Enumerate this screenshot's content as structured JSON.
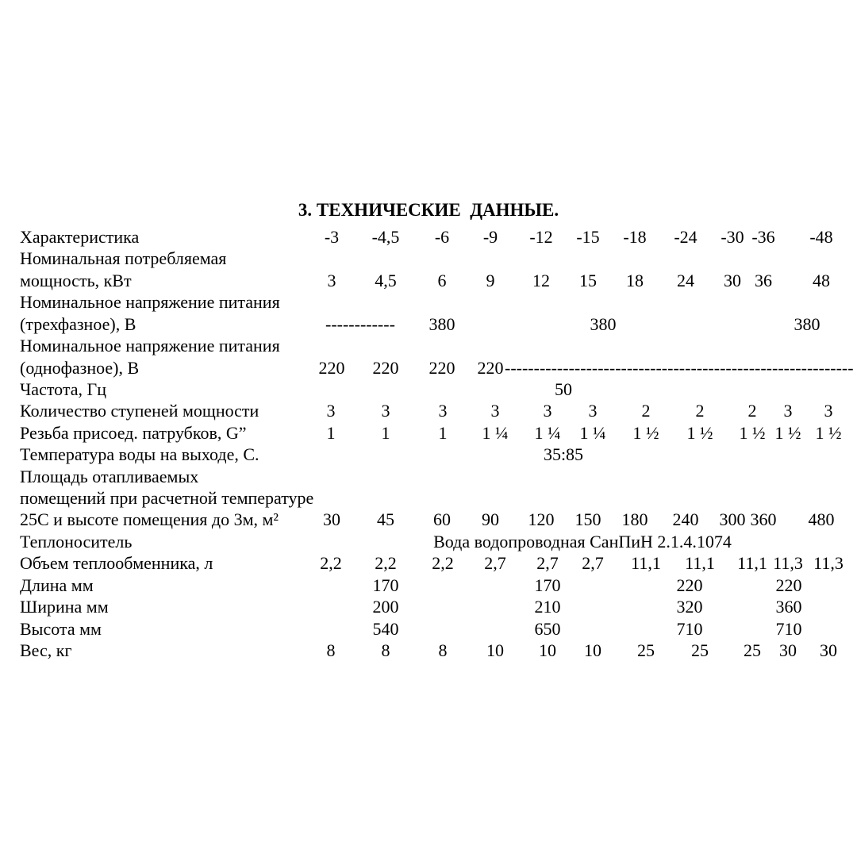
{
  "title": "3. ТЕХНИЧЕСКИЕ  ДАННЫЕ.",
  "table": {
    "rows": [
      {
        "label": "Характеристика",
        "set": "A",
        "values": [
          "-3",
          "-4,5",
          "-6",
          "-9",
          "-12",
          "-15",
          "-18",
          "-24",
          "-30",
          "-36",
          "-48"
        ]
      },
      {
        "label": "Номинальная потребляемая"
      },
      {
        "label": "мощность, кВт",
        "set": "A",
        "values": [
          "3",
          "4,5",
          "6",
          "9",
          "12",
          "15",
          "18",
          "24",
          "30",
          "36",
          "48"
        ]
      },
      {
        "label": "Номинальное напряжение питания"
      },
      {
        "label": "(трехфазное), В",
        "cells": [
          {
            "slot": "dash3",
            "value": "------------"
          },
          {
            "slot": "v380_0",
            "value": "380"
          },
          {
            "slot": "v380_1",
            "value": "380"
          },
          {
            "slot": "v380_2",
            "value": "380"
          }
        ]
      },
      {
        "label": "Номинальное напряжение питания"
      },
      {
        "label": "(однофазное), В",
        "cells": [
          {
            "slot": "A0",
            "value": "220"
          },
          {
            "slot": "A1",
            "value": "220"
          },
          {
            "slot": "A2",
            "value": "220"
          },
          {
            "slot": "A3",
            "value": "220"
          },
          {
            "slot": "dashlong",
            "value": "------------------------------------------------------------"
          }
        ]
      },
      {
        "label": "Частота, Гц",
        "cells": [
          {
            "slot": "mid",
            "value": "50"
          }
        ]
      },
      {
        "label": "Количество ступеней мощности",
        "set": "B",
        "values": [
          "3",
          "3",
          "3",
          "3",
          "3",
          "3",
          "2",
          "2",
          "2",
          "3",
          "3"
        ]
      },
      {
        "label": "Резьба присоед. патрубков, G”",
        "set": "B",
        "values": [
          "1",
          "1",
          "1",
          "1 ¼",
          "1 ¼",
          "1 ¼",
          "1 ½",
          "1 ½",
          "1 ½",
          "1 ½",
          "1 ½"
        ]
      },
      {
        "label": "Температура воды на выходе, С.",
        "cells": [
          {
            "slot": "mid",
            "value": "35:85"
          }
        ]
      },
      {
        "label": "Площадь отапливаемых"
      },
      {
        "label": "помещений при расчетной температуре"
      },
      {
        "label": "25С и высоте помещения до 3м, м²",
        "set": "A",
        "values": [
          "30",
          "45",
          "60",
          "90",
          "120",
          "150",
          "180",
          "240",
          "300",
          "360",
          "480"
        ]
      },
      {
        "label": "Теплоноситель",
        "cells": [
          {
            "slot": "carrier",
            "value": "Вода водопроводная СанПиН 2.1.4.1074"
          }
        ]
      },
      {
        "label": "Объем теплообменника, л",
        "set": "B",
        "values": [
          "2,2",
          "2,2",
          "2,2",
          "2,7",
          "2,7",
          "2,7",
          "11,1",
          "11,1",
          "11,1",
          "11,3",
          "11,3"
        ]
      },
      {
        "label": "Длина мм",
        "set": "D",
        "values": [
          "170",
          "170",
          "220",
          "220"
        ]
      },
      {
        "label": "Ширина мм",
        "set": "D",
        "values": [
          "200",
          "210",
          "320",
          "360"
        ]
      },
      {
        "label": "Высота мм",
        "set": "D",
        "values": [
          "540",
          "650",
          "710",
          "710"
        ]
      },
      {
        "label": "Вес, кг",
        "set": "B",
        "values": [
          "8",
          "8",
          "8",
          "10",
          "10",
          "10",
          "25",
          "25",
          "25",
          "30",
          "30"
        ]
      }
    ]
  },
  "colors": {
    "page_background": "#ffffff",
    "text": "#000000"
  }
}
